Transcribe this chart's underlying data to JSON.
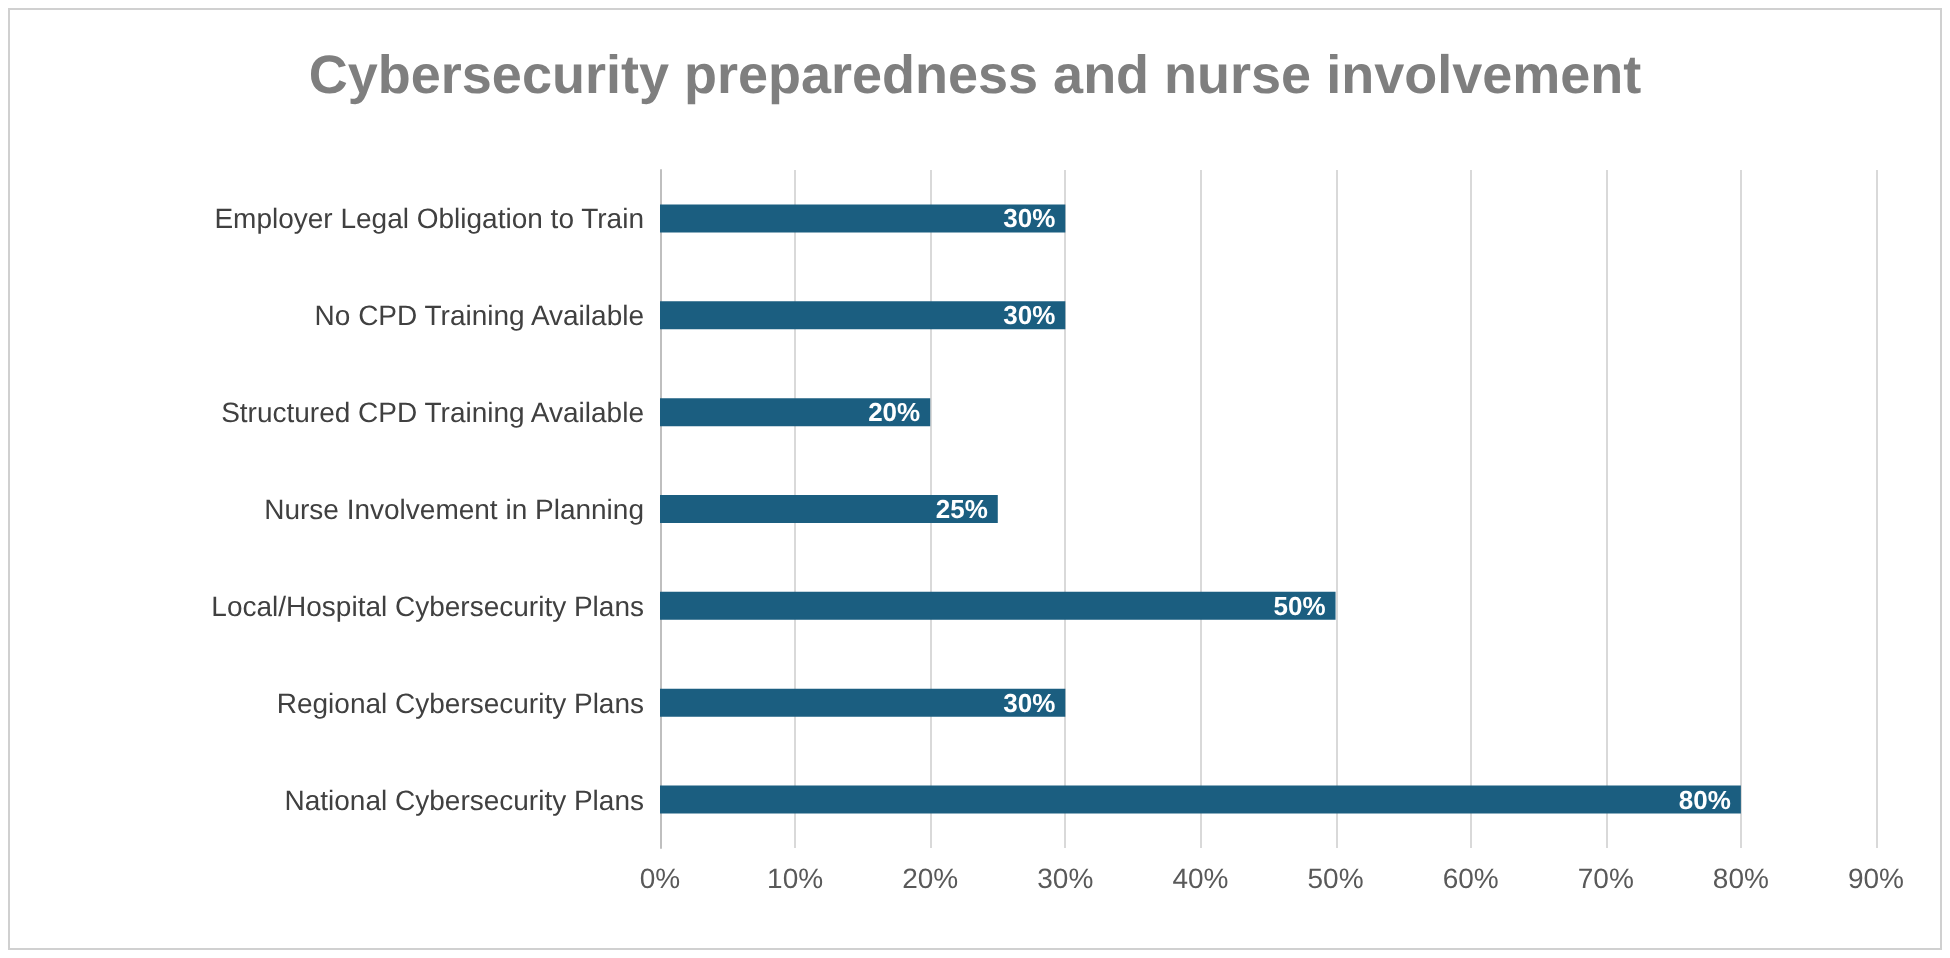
{
  "chart_data": {
    "type": "bar",
    "orientation": "horizontal",
    "title": "Cybersecurity preparedness and nurse involvement",
    "categories": [
      "Employer Legal Obligation to Train",
      "No CPD Training Available",
      "Structured CPD Training Available",
      "Nurse Involvement in Planning",
      "Local/Hospital Cybersecurity Plans",
      "Regional Cybersecurity Plans",
      "National Cybersecurity Plans"
    ],
    "values": [
      30,
      30,
      20,
      25,
      50,
      30,
      80
    ],
    "value_labels": [
      "30%",
      "30%",
      "20%",
      "25%",
      "50%",
      "30%",
      "80%"
    ],
    "color": "#1b5e80",
    "xlim": [
      0,
      90
    ],
    "xticks": [
      {
        "value": 0,
        "label": "0%"
      },
      {
        "value": 10,
        "label": "10%"
      },
      {
        "value": 20,
        "label": "20%"
      },
      {
        "value": 30,
        "label": "30%"
      },
      {
        "value": 40,
        "label": "40%"
      },
      {
        "value": 50,
        "label": "50%"
      },
      {
        "value": 60,
        "label": "60%"
      },
      {
        "value": 70,
        "label": "70%"
      },
      {
        "value": 80,
        "label": "80%"
      },
      {
        "value": 90,
        "label": "90%"
      }
    ],
    "grid": "x"
  }
}
